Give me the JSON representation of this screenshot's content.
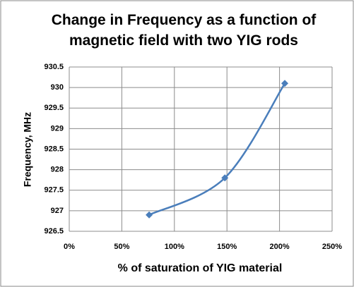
{
  "chart_data": {
    "type": "line",
    "title": "Change in Frequency as a function of magnetic field with two YIG rods",
    "x_label": "% of saturation  of YIG material",
    "y_label": "Frequency, MHz",
    "x": [
      76,
      148,
      205
    ],
    "values": [
      926.9,
      927.8,
      930.1
    ],
    "color": "#4a7ebb",
    "smooth": true,
    "xlim": [
      0,
      250
    ],
    "xticks": [
      {
        "value": 0,
        "label": "0%"
      },
      {
        "value": 50,
        "label": "50%"
      },
      {
        "value": 100,
        "label": "100%"
      },
      {
        "value": 150,
        "label": "150%"
      },
      {
        "value": 200,
        "label": "200%"
      },
      {
        "value": 250,
        "label": "250%"
      }
    ],
    "ylim": [
      926.5,
      930.5
    ],
    "yticks": [
      926.5,
      927,
      927.5,
      928,
      928.5,
      929,
      929.5,
      930,
      930.5
    ],
    "grid": true
  }
}
